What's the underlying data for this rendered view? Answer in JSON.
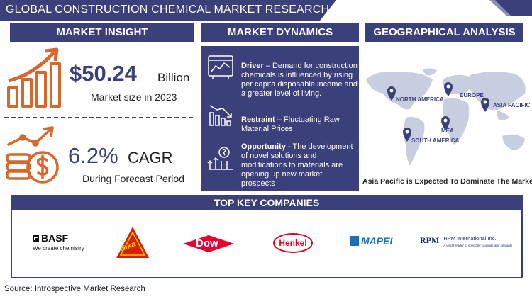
{
  "header": {
    "title": "GLOBAL CONSTRUCTION CHEMICAL MARKET RESEARCH REPORT"
  },
  "sections": {
    "market_insight": "MARKET INSIGHT",
    "market_dynamics": "MARKET DYNAMICS",
    "geographical_analysis": "GEOGRAPHICAL ANALYSIS",
    "top_key_companies": "TOP KEY COMPANIES"
  },
  "insight": {
    "market_size_value": "$50.24",
    "market_size_unit": "Billion",
    "market_size_label": "Market size in 2023",
    "cagr_value": "6.2%",
    "cagr_label": "CAGR",
    "cagr_period": "During Forecast Period"
  },
  "dynamics": {
    "driver_label": "Driver",
    "driver_text": " – Demand for construction chemicals is influenced by rising per capita disposable income and a greater level of living.",
    "restraint_label": "Restraint",
    "restraint_text": " – Fluctuating Raw Material Prices",
    "opportunity_label": "Opportunity",
    "opportunity_text": " - The development of novel solutions and modifications to materials are opening up new market prospects"
  },
  "geography": {
    "regions": [
      "NORTH AMERICA",
      "EUROPE",
      "ASIA PACIFIC",
      "MEA",
      "SOUTH AMERICA"
    ],
    "caption": "Asia Pacific is Expected To Dominate The Market"
  },
  "companies": {
    "basf_name": "BASF",
    "basf_tagline": "We create chemistry",
    "sika": "Sika",
    "dow": "Dow",
    "henkel": "Henkel",
    "mapei": "MAPEI",
    "rpm_name": "RPM International Inc.",
    "rpm_tagline": "A world leader in specialty coatings and sealants"
  },
  "source": "Source: Introspective Market Research",
  "colors": {
    "primary": "#3b3f7a",
    "accent": "#d9662b",
    "map": "#c9cde0"
  }
}
